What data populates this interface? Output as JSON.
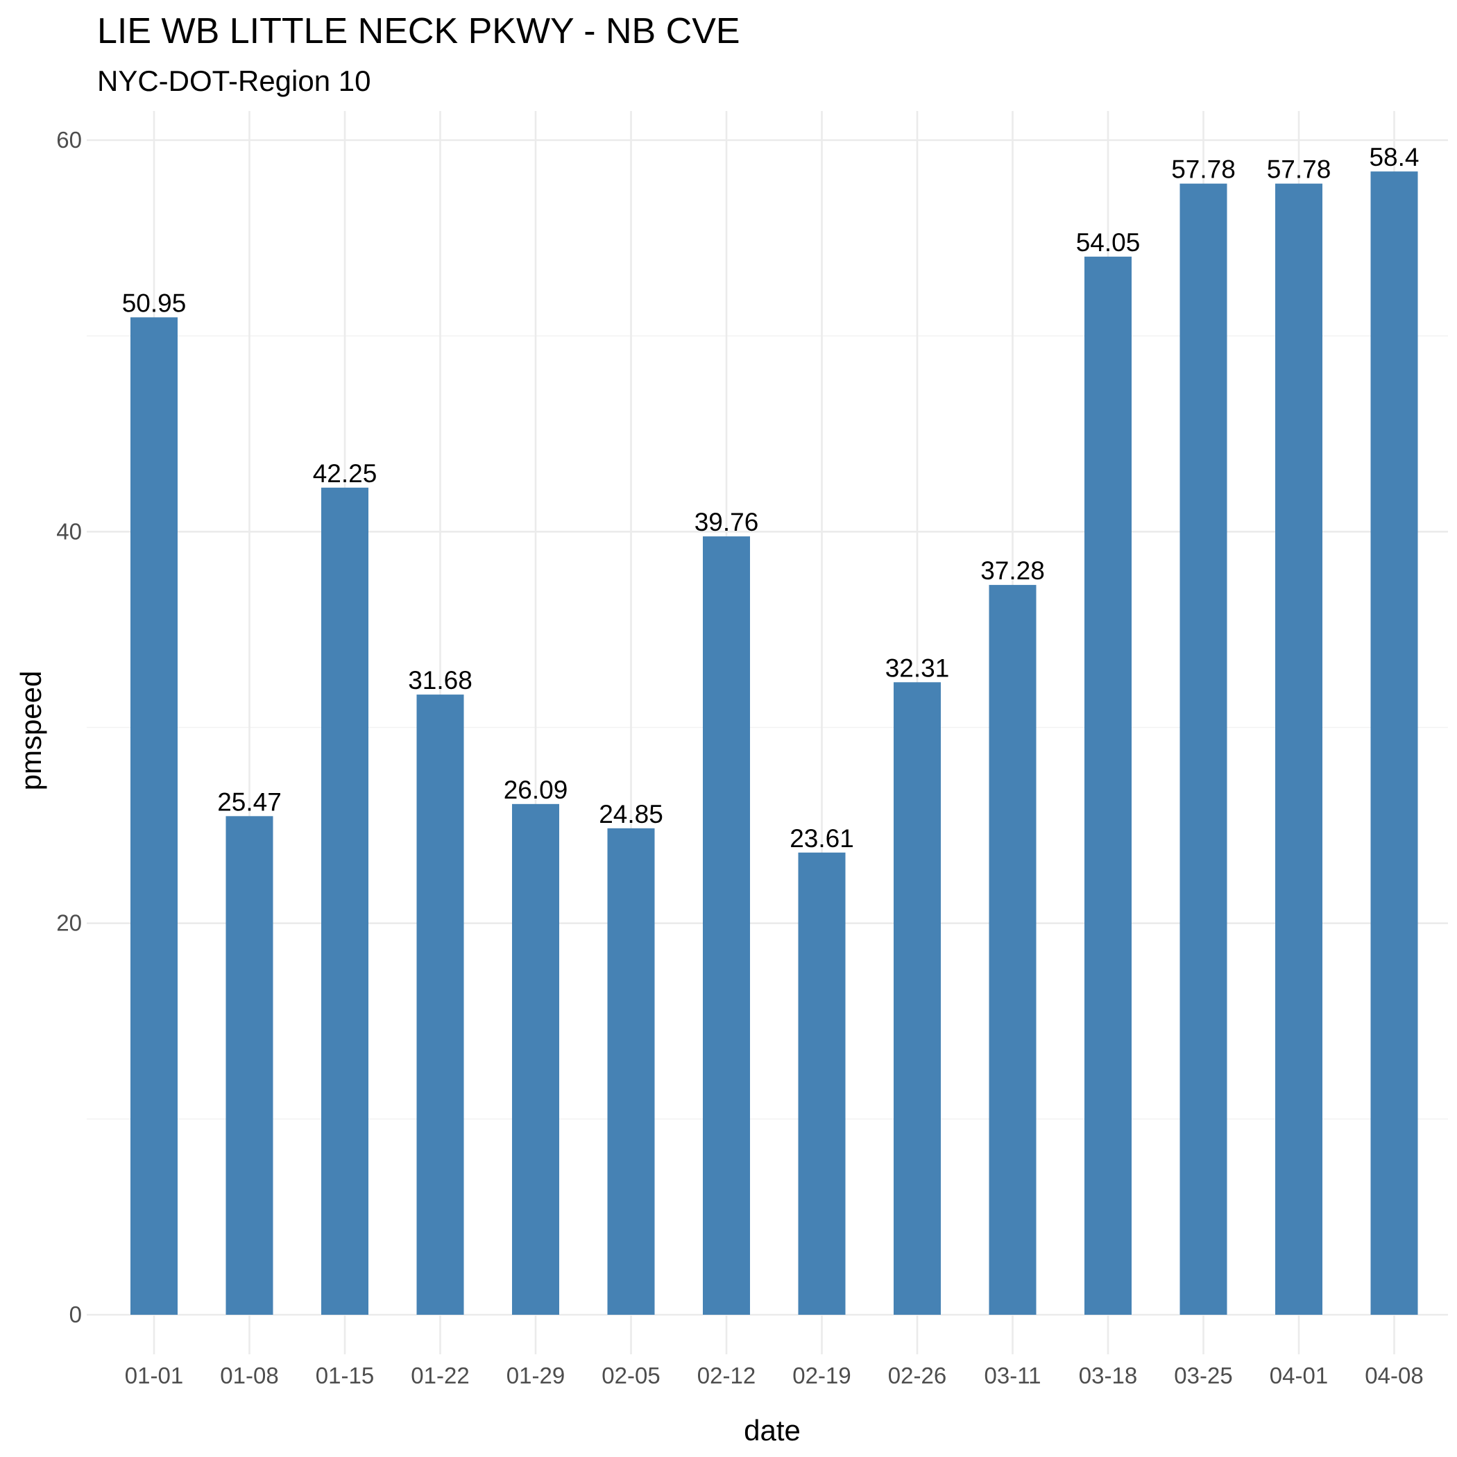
{
  "chart_data": {
    "type": "bar",
    "title": "LIE WB LITTLE NECK PKWY - NB CVE",
    "subtitle": "NYC-DOT-Region 10",
    "xlabel": "date",
    "ylabel": "pmspeed",
    "categories": [
      "01-01",
      "01-08",
      "01-15",
      "01-22",
      "01-29",
      "02-05",
      "02-12",
      "02-19",
      "02-26",
      "03-11",
      "03-18",
      "03-25",
      "04-01",
      "04-08"
    ],
    "values": [
      50.95,
      25.47,
      42.25,
      31.68,
      26.09,
      24.85,
      39.76,
      23.61,
      32.31,
      37.28,
      54.05,
      57.78,
      57.78,
      58.4
    ],
    "data_labels": [
      "50.95",
      "25.47",
      "42.25",
      "31.68",
      "26.09",
      "24.85",
      "39.76",
      "23.61",
      "32.31",
      "37.28",
      "54.05",
      "57.78",
      "57.78",
      "58.4"
    ],
    "yticks": [
      0,
      20,
      40,
      60
    ],
    "ytick_labels": [
      "0",
      "20",
      "40",
      "60"
    ],
    "ylim": [
      0,
      61.3
    ],
    "grid": true,
    "legend": "none",
    "bar_color": "#4682b4"
  }
}
